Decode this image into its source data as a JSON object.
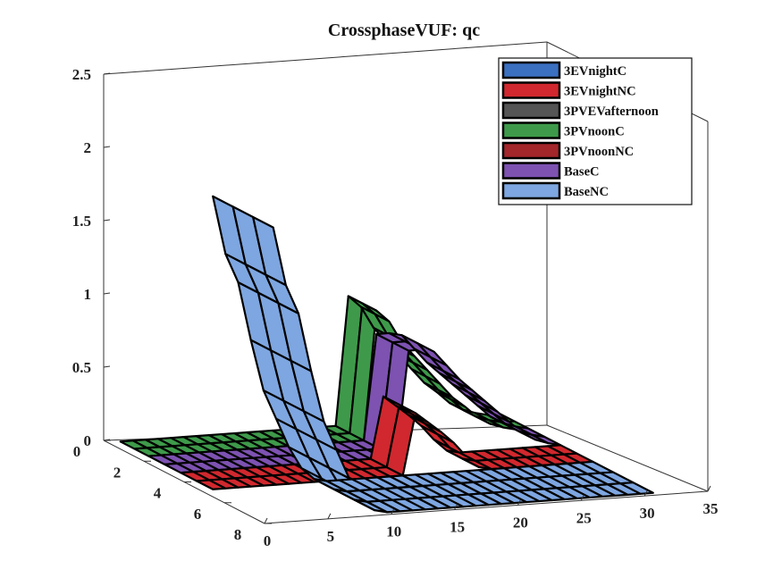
{
  "chart_data": {
    "type": "surface3d",
    "title": "CrossphaseVUF: qc",
    "xlabel": "",
    "ylabel": "",
    "zlabel": "",
    "xlim": [
      0,
      35
    ],
    "ylim": [
      0,
      8
    ],
    "zlim": [
      0,
      2.5
    ],
    "x_ticks": [
      "0",
      "5",
      "10",
      "15",
      "20",
      "25",
      "30",
      "35"
    ],
    "y_ticks": [
      "0",
      "2",
      "4",
      "6",
      "8"
    ],
    "z_ticks": [
      "0",
      "0.5",
      "1",
      "1.5",
      "2",
      "2.5"
    ],
    "legend_position": "top-right",
    "grid": false,
    "series": [
      {
        "name": "3EVnightC",
        "color": "#3b6fc0"
      },
      {
        "name": "3EVnightNC",
        "color": "#d0282e"
      },
      {
        "name": "3PVEVafternoon",
        "color": "#555555"
      },
      {
        "name": "3PVnoonC",
        "color": "#3e9a4a"
      },
      {
        "name": "3PVnoonNC",
        "color": "#a3262a"
      },
      {
        "name": "BaseC",
        "color": "#7d52b1"
      },
      {
        "name": "BaseNC",
        "color": "#7ea6e0"
      }
    ],
    "x": [
      1,
      2,
      3,
      4,
      5,
      6,
      7,
      8,
      9,
      10,
      11,
      12,
      13,
      14,
      15,
      16,
      17,
      18,
      19,
      20,
      21,
      22,
      23,
      24,
      25,
      26,
      27,
      28,
      29,
      30,
      31
    ],
    "profiles": {
      "BaseNC": [
        2.0,
        1.6,
        1.4,
        1.0,
        0.65,
        0.45,
        0.25,
        0.1,
        0.02,
        0.0,
        0.0,
        0.0,
        0.0,
        0.0,
        0.0,
        0.0,
        0.0,
        0.0,
        0.0,
        0.0,
        0.0,
        0.0,
        0.0,
        0.0,
        0.0,
        0.0,
        0.0,
        0.0,
        0.0,
        0.0,
        0.0
      ],
      "3EVnightNC": [
        0.0,
        0.0,
        0.0,
        0.0,
        0.0,
        0.0,
        0.0,
        0.0,
        0.0,
        0.0,
        0.0,
        0.0,
        0.0,
        0.0,
        0.0,
        0.0,
        0.42,
        0.35,
        0.28,
        0.2,
        0.1,
        0.02,
        0.0,
        0.0,
        0.0,
        0.0,
        0.0,
        0.0,
        0.0,
        0.0,
        0.0
      ],
      "BaseC": [
        0.0,
        0.0,
        0.0,
        0.0,
        0.0,
        0.0,
        0.0,
        0.0,
        0.0,
        0.0,
        0.0,
        0.0,
        0.0,
        0.0,
        0.0,
        0.0,
        0.0,
        0.0,
        0.72,
        0.72,
        0.7,
        0.6,
        0.5,
        0.42,
        0.34,
        0.26,
        0.18,
        0.1,
        0.05,
        0.02,
        0.0
      ],
      "3PVnoonC": [
        0.0,
        0.0,
        0.0,
        0.0,
        0.0,
        0.0,
        0.0,
        0.0,
        0.0,
        0.0,
        0.0,
        0.0,
        0.0,
        0.0,
        0.0,
        0.0,
        0.0,
        0.0,
        0.88,
        0.8,
        0.65,
        0.55,
        0.45,
        0.35,
        0.25,
        0.18,
        0.1,
        0.05,
        0.02,
        0.0,
        0.0
      ]
    }
  }
}
